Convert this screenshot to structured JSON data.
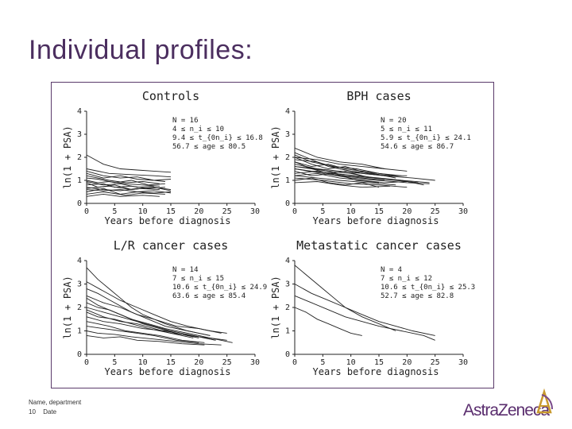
{
  "slide": {
    "title": "Individual profiles:",
    "footer_name": "Name, department",
    "page_number": "10",
    "footer_date": "Date",
    "logo_text": "AstraZeneca"
  },
  "chart_data": [
    {
      "type": "line",
      "title": "Controls",
      "xlabel": "Years before diagnosis",
      "ylabel": "ln(1 + PSA)",
      "xlim": [
        0,
        30
      ],
      "ylim": [
        0,
        4
      ],
      "xticks": [
        "0",
        "5",
        "10",
        "15",
        "20",
        "25",
        "30"
      ],
      "yticks": [
        "0",
        "1",
        "2",
        "3",
        "4"
      ],
      "stats": [
        "N = 16",
        "4  ≤  n_i  ≤  10",
        "9.4  ≤  t_{0n_i}  ≤  16.8",
        "56.7  ≤  age ≤  80.5"
      ],
      "series": [
        {
          "x": [
            0,
            3,
            6,
            9,
            12,
            15
          ],
          "values": [
            2.1,
            1.7,
            1.5,
            1.45,
            1.4,
            1.35
          ]
        },
        {
          "x": [
            0,
            3,
            6,
            9,
            12,
            14
          ],
          "values": [
            1.3,
            1.1,
            1.2,
            1.05,
            1.0,
            0.95
          ]
        },
        {
          "x": [
            0,
            2,
            4,
            7,
            10,
            13
          ],
          "values": [
            1.0,
            0.9,
            0.95,
            0.85,
            0.8,
            0.75
          ]
        },
        {
          "x": [
            0,
            3,
            5,
            8,
            11,
            14
          ],
          "values": [
            0.8,
            0.85,
            0.7,
            0.75,
            0.65,
            0.7
          ]
        },
        {
          "x": [
            0,
            3,
            6,
            9,
            12,
            15
          ],
          "values": [
            0.6,
            0.55,
            0.6,
            0.5,
            0.55,
            0.45
          ]
        },
        {
          "x": [
            0,
            2,
            5,
            8,
            12,
            15
          ],
          "values": [
            0.9,
            0.7,
            0.8,
            0.6,
            0.7,
            0.6
          ]
        },
        {
          "x": [
            0,
            4,
            7,
            10,
            13
          ],
          "values": [
            1.2,
            1.0,
            0.9,
            0.95,
            0.85
          ]
        },
        {
          "x": [
            0,
            3,
            6,
            9,
            12,
            15
          ],
          "values": [
            0.5,
            0.65,
            0.4,
            0.5,
            0.45,
            0.5
          ]
        },
        {
          "x": [
            0,
            3,
            6,
            9,
            13
          ],
          "values": [
            0.7,
            0.6,
            0.55,
            0.65,
            0.6
          ]
        },
        {
          "x": [
            0,
            2,
            5,
            8,
            11,
            14
          ],
          "values": [
            1.1,
            1.05,
            0.9,
            1.0,
            0.8,
            0.85
          ]
        },
        {
          "x": [
            0,
            3,
            7,
            10,
            14
          ],
          "values": [
            0.4,
            0.5,
            0.35,
            0.45,
            0.4
          ]
        },
        {
          "x": [
            0,
            4,
            8,
            12,
            15
          ],
          "values": [
            1.5,
            1.3,
            1.25,
            1.2,
            1.15
          ]
        },
        {
          "x": [
            0,
            3,
            6,
            10,
            13
          ],
          "values": [
            0.3,
            0.4,
            0.3,
            0.35,
            0.3
          ]
        },
        {
          "x": [
            0,
            3,
            6,
            9,
            12
          ],
          "values": [
            0.95,
            0.8,
            0.85,
            0.7,
            0.75
          ]
        },
        {
          "x": [
            0,
            4,
            8,
            12,
            15
          ],
          "values": [
            0.65,
            0.75,
            0.6,
            0.7,
            0.55
          ]
        },
        {
          "x": [
            0,
            3,
            6,
            9,
            12,
            15
          ],
          "values": [
            1.4,
            1.2,
            1.1,
            1.15,
            1.0,
            1.05
          ]
        }
      ]
    },
    {
      "type": "line",
      "title": "BPH cases",
      "xlabel": "Years before diagnosis",
      "ylabel": "ln(1 + PSA)",
      "xlim": [
        0,
        30
      ],
      "ylim": [
        0,
        4
      ],
      "xticks": [
        "0",
        "5",
        "10",
        "15",
        "20",
        "25",
        "30"
      ],
      "yticks": [
        "0",
        "1",
        "2",
        "3",
        "4"
      ],
      "stats": [
        "N = 20",
        "5  ≤  n_i  ≤  11",
        "5.9  ≤  t_{0n_i}  ≤  24.1",
        "54.6  ≤  age ≤  86.7"
      ],
      "series": [
        {
          "x": [
            0,
            4,
            8,
            12,
            16,
            20
          ],
          "values": [
            2.0,
            1.9,
            1.7,
            1.6,
            1.5,
            1.4
          ]
        },
        {
          "x": [
            0,
            3,
            6,
            9,
            12,
            15,
            18
          ],
          "values": [
            1.8,
            1.6,
            1.7,
            1.5,
            1.4,
            1.3,
            1.2
          ]
        },
        {
          "x": [
            0,
            4,
            8,
            12,
            16
          ],
          "values": [
            2.4,
            2.0,
            1.8,
            1.7,
            1.5
          ]
        },
        {
          "x": [
            0,
            3,
            7,
            11,
            15,
            19,
            24
          ],
          "values": [
            1.5,
            1.4,
            1.3,
            1.2,
            1.1,
            1.0,
            0.9
          ]
        },
        {
          "x": [
            0,
            4,
            8,
            12,
            16,
            20
          ],
          "values": [
            1.2,
            1.3,
            1.1,
            1.0,
            0.9,
            0.95
          ]
        },
        {
          "x": [
            0,
            3,
            6,
            10,
            14,
            18
          ],
          "values": [
            2.2,
            1.9,
            1.6,
            1.4,
            1.3,
            1.1
          ]
        },
        {
          "x": [
            0,
            4,
            8,
            12,
            16,
            21,
            25
          ],
          "values": [
            1.7,
            1.5,
            1.4,
            1.3,
            1.2,
            1.1,
            1.0
          ]
        },
        {
          "x": [
            0,
            3,
            6,
            9,
            12,
            15
          ],
          "values": [
            1.0,
            1.1,
            0.9,
            0.8,
            0.9,
            0.7
          ]
        },
        {
          "x": [
            0,
            4,
            8,
            12,
            16,
            20
          ],
          "values": [
            1.9,
            1.8,
            1.5,
            1.3,
            1.2,
            1.2
          ]
        },
        {
          "x": [
            0,
            3,
            7,
            11,
            15
          ],
          "values": [
            1.4,
            1.2,
            1.3,
            1.0,
            0.9
          ]
        },
        {
          "x": [
            0,
            4,
            9,
            14,
            19,
            23
          ],
          "values": [
            1.6,
            1.5,
            1.2,
            1.1,
            1.0,
            0.8
          ]
        },
        {
          "x": [
            0,
            3,
            6,
            9,
            13,
            17
          ],
          "values": [
            2.0,
            1.7,
            1.5,
            1.6,
            1.3,
            1.2
          ]
        },
        {
          "x": [
            0,
            5,
            10,
            15,
            20
          ],
          "values": [
            1.1,
            1.0,
            0.85,
            0.8,
            0.7
          ]
        },
        {
          "x": [
            0,
            4,
            8,
            12,
            16
          ],
          "values": [
            1.3,
            1.4,
            1.2,
            1.1,
            1.0
          ]
        },
        {
          "x": [
            0,
            3,
            6,
            10,
            14,
            18,
            22
          ],
          "values": [
            1.8,
            1.5,
            1.4,
            1.3,
            1.1,
            1.0,
            0.9
          ]
        },
        {
          "x": [
            0,
            4,
            8,
            12,
            17
          ],
          "values": [
            0.9,
            0.95,
            0.8,
            0.7,
            0.75
          ]
        },
        {
          "x": [
            0,
            3,
            7,
            11,
            15,
            19
          ],
          "values": [
            2.1,
            1.8,
            1.6,
            1.5,
            1.3,
            1.2
          ]
        },
        {
          "x": [
            0,
            5,
            10,
            15,
            20,
            24
          ],
          "values": [
            1.5,
            1.3,
            1.1,
            1.0,
            0.9,
            0.85
          ]
        },
        {
          "x": [
            0,
            3,
            6,
            9,
            12
          ],
          "values": [
            1.6,
            1.5,
            1.3,
            1.4,
            1.2
          ]
        },
        {
          "x": [
            0,
            4,
            8,
            13,
            18
          ],
          "values": [
            1.2,
            1.1,
            1.0,
            0.9,
            0.8
          ]
        }
      ]
    },
    {
      "type": "line",
      "title": "L/R cancer cases",
      "xlabel": "Years before diagnosis",
      "ylabel": "ln(1 + PSA)",
      "xlim": [
        0,
        30
      ],
      "ylim": [
        0,
        4
      ],
      "xticks": [
        "0",
        "5",
        "10",
        "15",
        "20",
        "25",
        "30"
      ],
      "yticks": [
        "0",
        "1",
        "2",
        "3",
        "4"
      ],
      "stats": [
        "N = 14",
        "7  ≤  n_i  ≤  15",
        "10.6  ≤  t_{0n_i}  ≤  24.9",
        "63.6  ≤  age ≤  85.4"
      ],
      "series": [
        {
          "x": [
            0,
            2,
            4,
            6,
            8,
            10,
            14,
            18,
            22
          ],
          "values": [
            3.7,
            3.2,
            2.8,
            2.4,
            2.0,
            1.7,
            1.3,
            1.0,
            0.8
          ]
        },
        {
          "x": [
            0,
            3,
            6,
            9,
            12,
            15,
            18,
            22,
            25
          ],
          "values": [
            3.1,
            2.7,
            2.3,
            2.0,
            1.7,
            1.4,
            1.2,
            1.0,
            0.9
          ]
        },
        {
          "x": [
            0,
            2,
            5,
            8,
            11,
            14,
            18,
            22
          ],
          "values": [
            2.8,
            2.6,
            2.2,
            1.8,
            1.5,
            1.2,
            1.0,
            0.8
          ]
        },
        {
          "x": [
            0,
            3,
            6,
            9,
            12,
            16,
            20,
            24
          ],
          "values": [
            2.5,
            2.2,
            2.0,
            1.7,
            1.5,
            1.2,
            1.1,
            0.9
          ]
        },
        {
          "x": [
            0,
            2,
            4,
            7,
            10,
            13,
            16,
            20
          ],
          "values": [
            2.2,
            2.0,
            1.9,
            1.6,
            1.3,
            1.1,
            0.9,
            0.7
          ]
        },
        {
          "x": [
            0,
            3,
            6,
            9,
            12,
            15,
            19,
            23
          ],
          "values": [
            2.0,
            1.8,
            1.6,
            1.4,
            1.2,
            1.0,
            0.8,
            0.6
          ]
        },
        {
          "x": [
            0,
            2,
            5,
            8,
            11,
            15,
            19
          ],
          "values": [
            1.8,
            1.6,
            1.5,
            1.3,
            1.1,
            0.9,
            0.7
          ]
        },
        {
          "x": [
            0,
            3,
            6,
            10,
            14,
            18,
            22,
            26
          ],
          "values": [
            1.6,
            1.4,
            1.3,
            1.1,
            1.0,
            0.8,
            0.7,
            0.5
          ]
        },
        {
          "x": [
            0,
            2,
            4,
            7,
            10,
            13,
            17,
            21
          ],
          "values": [
            1.4,
            1.3,
            1.2,
            1.0,
            0.9,
            0.8,
            0.6,
            0.5
          ]
        },
        {
          "x": [
            0,
            3,
            6,
            9,
            12,
            16,
            20
          ],
          "values": [
            1.2,
            1.1,
            1.0,
            0.9,
            0.8,
            0.6,
            0.5
          ]
        },
        {
          "x": [
            0,
            2,
            5,
            8,
            12,
            16,
            20,
            24
          ],
          "values": [
            1.0,
            0.9,
            0.85,
            0.75,
            0.65,
            0.55,
            0.45,
            0.4
          ]
        },
        {
          "x": [
            0,
            3,
            6,
            9,
            13,
            17,
            21
          ],
          "values": [
            0.8,
            0.7,
            0.75,
            0.6,
            0.55,
            0.45,
            0.4
          ]
        },
        {
          "x": [
            0,
            2,
            5,
            8,
            11,
            14,
            18,
            22,
            25
          ],
          "values": [
            2.4,
            2.1,
            1.8,
            1.5,
            1.3,
            1.1,
            0.9,
            0.7,
            0.6
          ]
        },
        {
          "x": [
            0,
            3,
            6,
            9,
            12,
            15,
            19,
            23
          ],
          "values": [
            1.9,
            1.6,
            1.4,
            1.3,
            1.1,
            0.9,
            0.8,
            0.6
          ]
        }
      ]
    },
    {
      "type": "line",
      "title": "Metastatic cancer cases",
      "xlabel": "Years before diagnosis",
      "ylabel": "ln(1 + PSA)",
      "xlim": [
        0,
        30
      ],
      "ylim": [
        0,
        4
      ],
      "xticks": [
        "0",
        "5",
        "10",
        "15",
        "20",
        "25",
        "30"
      ],
      "yticks": [
        "0",
        "1",
        "2",
        "3",
        "4"
      ],
      "stats": [
        "N = 4",
        "7  ≤  n_i  ≤  12",
        "10.6  ≤  t_{0n_i}  ≤  25.3",
        "52.7  ≤  age ≤  82.8"
      ],
      "series": [
        {
          "x": [
            0,
            3,
            5,
            7,
            9,
            12,
            15,
            18
          ],
          "values": [
            3.8,
            3.2,
            2.8,
            2.4,
            2.0,
            1.6,
            1.3,
            1.0
          ]
        },
        {
          "x": [
            0,
            3,
            6,
            9,
            12,
            15,
            18,
            21,
            25
          ],
          "values": [
            3.0,
            2.6,
            2.3,
            2.0,
            1.7,
            1.4,
            1.2,
            1.0,
            0.8
          ]
        },
        {
          "x": [
            0,
            3,
            6,
            9,
            12,
            15,
            19,
            23,
            25
          ],
          "values": [
            2.5,
            2.2,
            1.9,
            1.6,
            1.4,
            1.2,
            1.0,
            0.8,
            0.6
          ]
        },
        {
          "x": [
            0,
            2,
            4,
            6,
            8,
            10,
            12
          ],
          "values": [
            2.0,
            1.8,
            1.5,
            1.3,
            1.1,
            0.9,
            0.8
          ]
        }
      ]
    }
  ]
}
